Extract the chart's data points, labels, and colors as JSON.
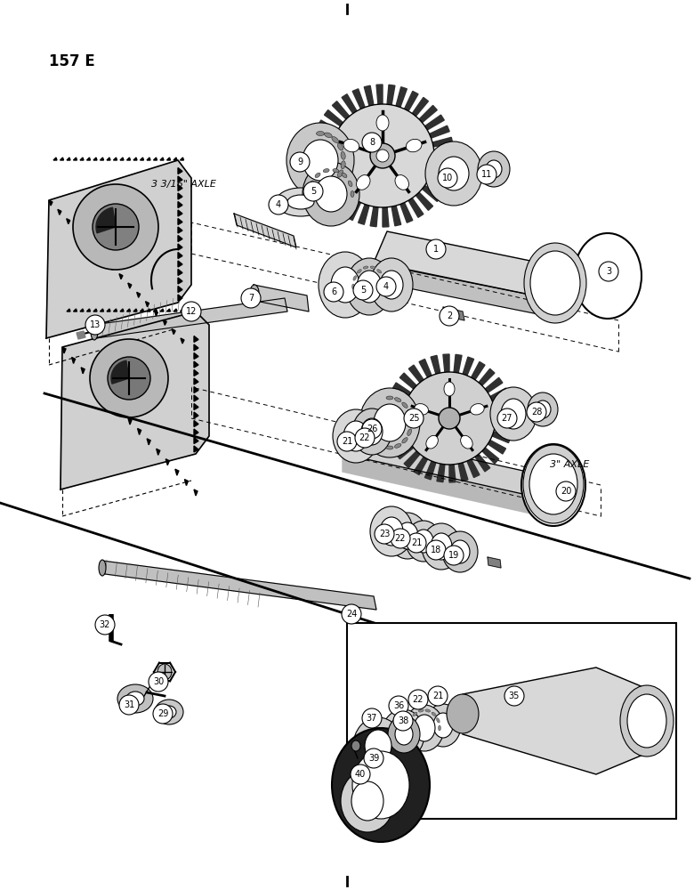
{
  "bg_color": "#ffffff",
  "label_157e": "157 E",
  "label_3316_axle": "3 3/16\" AXLE",
  "label_3_axle": "3\" AXLE",
  "figsize": [
    7.8,
    10.0
  ],
  "dpi": 100
}
